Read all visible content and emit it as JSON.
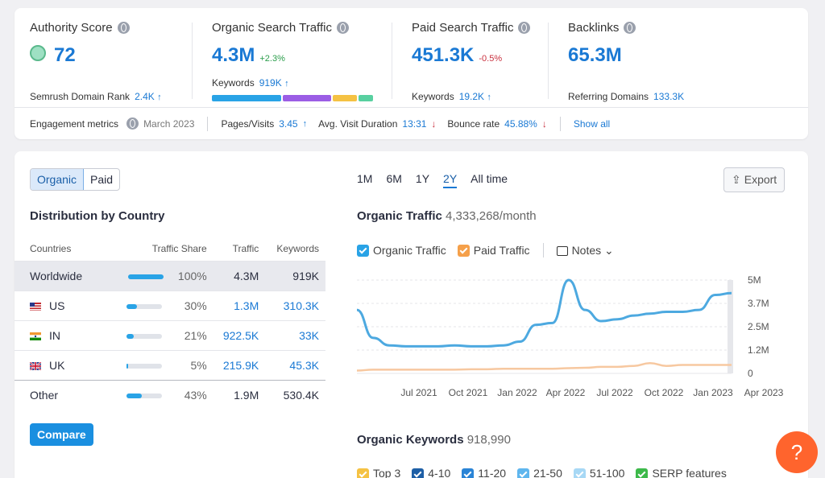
{
  "metrics": {
    "authority": {
      "title": "Authority Score",
      "value": "72",
      "sub_label": "Semrush Domain Rank",
      "sub_value": "2.4K"
    },
    "organic": {
      "title": "Organic Search Traffic",
      "value": "4.3M",
      "delta": "+2.3%",
      "sub_label": "Keywords",
      "sub_value": "919K"
    },
    "paid": {
      "title": "Paid Search Traffic",
      "value": "451.3K",
      "delta": "-0.5%",
      "sub_label": "Keywords",
      "sub_value": "19.2K"
    },
    "backlinks": {
      "title": "Backlinks",
      "value": "65.3M",
      "sub_label": "Referring Domains",
      "sub_value": "133.3K"
    }
  },
  "engagement": {
    "label": "Engagement metrics",
    "date": "March 2023",
    "pages_label": "Pages/Visits",
    "pages_value": "3.45",
    "duration_label": "Avg. Visit Duration",
    "duration_value": "13:31",
    "bounce_label": "Bounce rate",
    "bounce_value": "45.88%",
    "show_all": "Show all"
  },
  "toggle": {
    "organic": "Organic",
    "paid": "Paid"
  },
  "distribution": {
    "title": "Distribution by Country",
    "headers": [
      "Countries",
      "Traffic Share",
      "Traffic",
      "Keywords"
    ],
    "rows": [
      {
        "country": "Worldwide",
        "share": "100%",
        "share_value": 100,
        "traffic": "4.3M",
        "keywords": "919K"
      },
      {
        "country": "US",
        "share": "30%",
        "share_value": 30,
        "traffic": "1.3M",
        "keywords": "310.3K"
      },
      {
        "country": "IN",
        "share": "21%",
        "share_value": 21,
        "traffic": "922.5K",
        "keywords": "33K"
      },
      {
        "country": "UK",
        "share": "5%",
        "share_value": 5,
        "traffic": "215.9K",
        "keywords": "45.3K"
      },
      {
        "country": "Other",
        "share": "43%",
        "share_value": 43,
        "traffic": "1.9M",
        "keywords": "530.4K"
      }
    ],
    "compare_label": "Compare"
  },
  "periods": [
    "1M",
    "6M",
    "1Y",
    "2Y",
    "All time"
  ],
  "export_label": "Export",
  "traffic_chart": {
    "title": "Organic Traffic",
    "subtitle": "4,333,268/month",
    "legend_organic": "Organic Traffic",
    "legend_paid": "Paid Traffic",
    "notes_label": "Notes"
  },
  "chart_data": {
    "type": "line",
    "x_ticks": [
      "Jul 2021",
      "Oct 2021",
      "Jan 2022",
      "Apr 2022",
      "Jul 2022",
      "Oct 2022",
      "Jan 2023",
      "Apr 2023"
    ],
    "y_ticks": [
      "5M",
      "3.7M",
      "2.5M",
      "1.2M",
      "0"
    ],
    "ylim": [
      0,
      5000000
    ],
    "series": [
      {
        "name": "Organic Traffic",
        "color": "#4da9e0",
        "values": [
          3400000,
          1900000,
          1500000,
          1450000,
          1450000,
          1450000,
          1500000,
          1450000,
          1450000,
          1500000,
          1700000,
          2600000,
          2700000,
          5000000,
          3400000,
          2800000,
          2900000,
          3100000,
          3200000,
          3300000,
          3300000,
          3400000,
          4200000,
          4300000
        ]
      },
      {
        "name": "Paid Traffic",
        "color": "#f7c8a0",
        "values": [
          150000,
          200000,
          200000,
          200000,
          200000,
          200000,
          200000,
          220000,
          220000,
          250000,
          250000,
          250000,
          250000,
          280000,
          300000,
          350000,
          350000,
          400000,
          550000,
          400000,
          450000,
          450000,
          450000,
          450000
        ]
      }
    ]
  },
  "keywords_section": {
    "title": "Organic Keywords",
    "count": "918,990",
    "legend": [
      "Top 3",
      "4-10",
      "11-20",
      "21-50",
      "51-100",
      "SERP features"
    ],
    "colors": [
      "#f5c243",
      "#1e5fa6",
      "#2a84d6",
      "#5fb6ee",
      "#a7d8f5",
      "#3db94a"
    ]
  },
  "help_label": "?"
}
